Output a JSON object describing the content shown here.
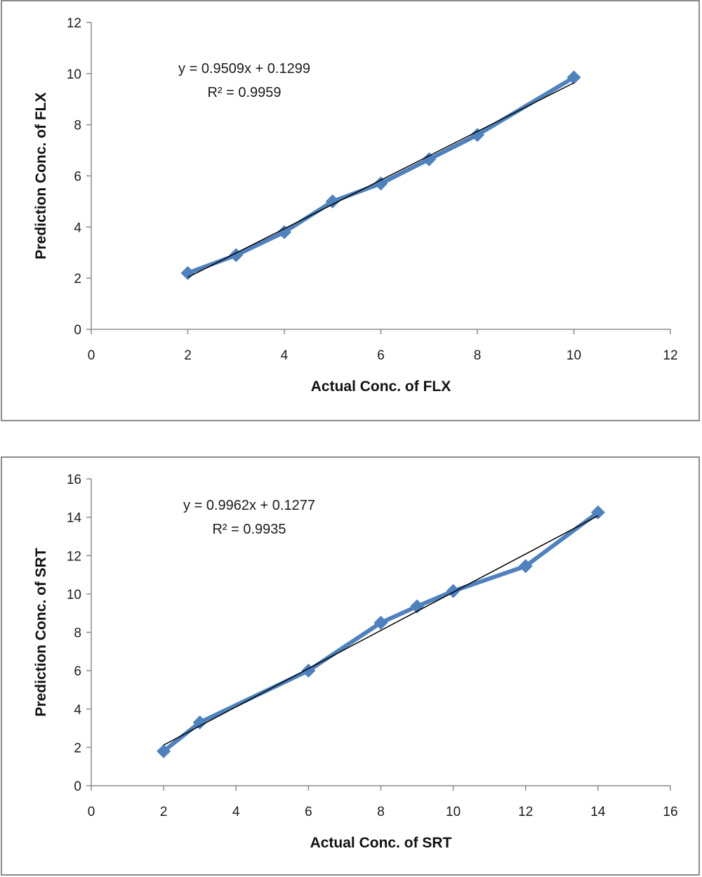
{
  "chart_data": [
    {
      "type": "scatter",
      "xlabel": "Actual Conc. of FLX",
      "ylabel": "Prediction Conc. of FLX",
      "xlim": [
        0,
        12
      ],
      "ylim": [
        0,
        12
      ],
      "xticks": [
        "0",
        "2",
        "4",
        "6",
        "8",
        "10",
        "12"
      ],
      "yticks": [
        "0",
        "2",
        "4",
        "6",
        "8",
        "10",
        "12"
      ],
      "grid": false,
      "series": [
        {
          "x": [
            2,
            3,
            4,
            5,
            6,
            7,
            8,
            10
          ],
          "y": [
            2.2,
            2.9,
            3.8,
            5.0,
            5.7,
            6.65,
            7.6,
            9.85
          ],
          "color": "#4f81bd",
          "marker": "diamond",
          "line": true
        }
      ],
      "trendline": {
        "slope": 0.9509,
        "intercept": 0.1299,
        "x_range": [
          2,
          10
        ],
        "color": "#000000"
      },
      "annotations": [
        "y = 0.9509x + 0.1299",
        "R² = 0.9959"
      ]
    },
    {
      "type": "scatter",
      "xlabel": "Actual Conc. of SRT",
      "ylabel": "Prediction Conc. of SRT",
      "xlim": [
        0,
        16
      ],
      "ylim": [
        0,
        16
      ],
      "xticks": [
        "0",
        "2",
        "4",
        "6",
        "8",
        "10",
        "12",
        "14",
        "16"
      ],
      "yticks": [
        "0",
        "2",
        "4",
        "6",
        "8",
        "10",
        "12",
        "14",
        "16"
      ],
      "grid": false,
      "series": [
        {
          "x": [
            2,
            3,
            6,
            8,
            9,
            10,
            12,
            14
          ],
          "y": [
            1.8,
            3.3,
            6.0,
            8.5,
            9.35,
            10.15,
            11.45,
            14.25
          ],
          "color": "#4f81bd",
          "marker": "diamond",
          "line": true
        }
      ],
      "trendline": {
        "slope": 0.9962,
        "intercept": 0.1277,
        "x_range": [
          2,
          14
        ],
        "color": "#000000"
      },
      "annotations": [
        "y = 0.9962x + 0.1277",
        "R² = 0.9935"
      ]
    }
  ]
}
